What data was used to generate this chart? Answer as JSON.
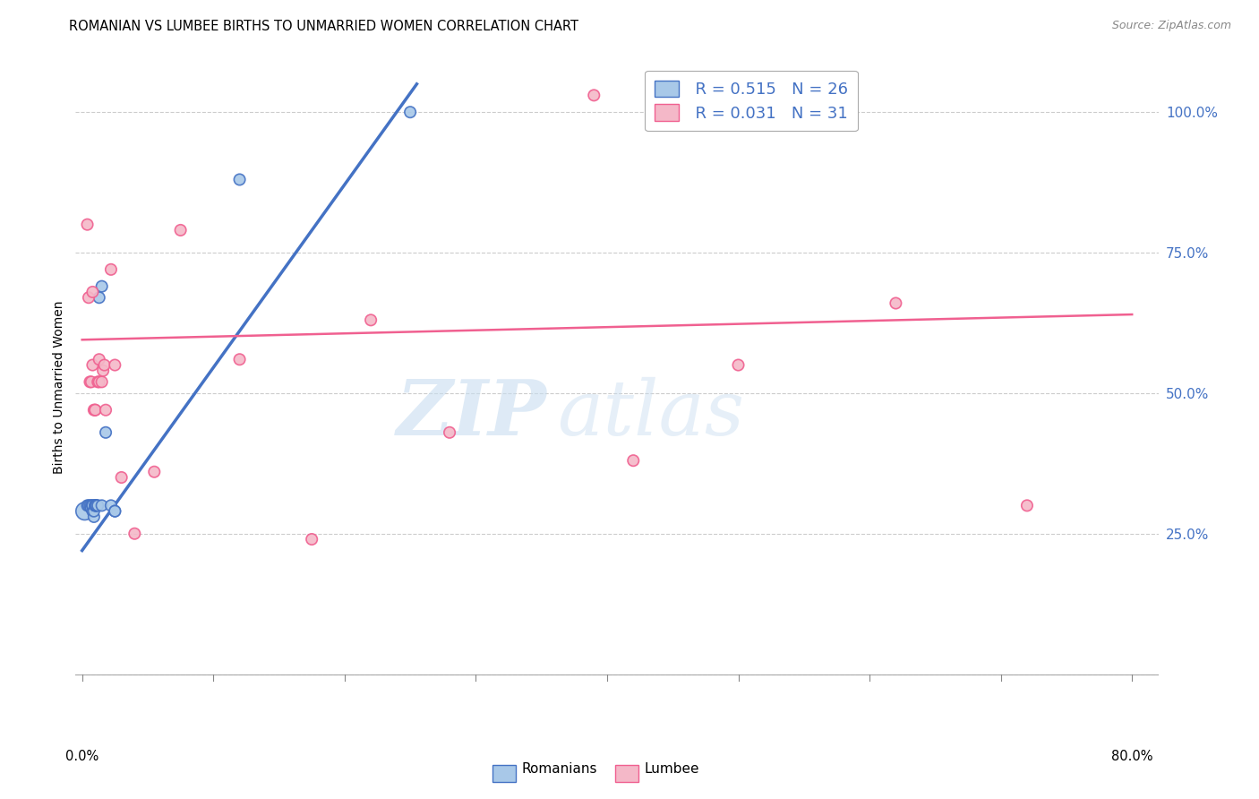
{
  "title": "ROMANIAN VS LUMBEE BIRTHS TO UNMARRIED WOMEN CORRELATION CHART",
  "source": "Source: ZipAtlas.com",
  "ylabel": "Births to Unmarried Women",
  "watermark_zip": "ZIP",
  "watermark_atlas": "atlas",
  "xlim": [
    -0.005,
    0.82
  ],
  "ylim": [
    -0.08,
    1.1
  ],
  "yticks": [
    0.0,
    0.25,
    0.5,
    0.75,
    1.0
  ],
  "ytick_labels": [
    "",
    "25.0%",
    "50.0%",
    "75.0%",
    "100.0%"
  ],
  "legend_R_romanian": "R = 0.515",
  "legend_N_romanian": "N = 26",
  "legend_R_lumbee": "R = 0.031",
  "legend_N_lumbee": "N = 31",
  "romanian_color": "#a8c8e8",
  "lumbee_color": "#f4b8c8",
  "romanian_line_color": "#4472c4",
  "lumbee_line_color": "#f06090",
  "grid_color": "#cccccc",
  "romanian_x": [
    0.002,
    0.004,
    0.005,
    0.006,
    0.007,
    0.007,
    0.008,
    0.008,
    0.008,
    0.009,
    0.009,
    0.01,
    0.01,
    0.01,
    0.011,
    0.011,
    0.012,
    0.013,
    0.015,
    0.015,
    0.018,
    0.022,
    0.025,
    0.025,
    0.12,
    0.25
  ],
  "romanian_y": [
    0.29,
    0.3,
    0.3,
    0.3,
    0.3,
    0.295,
    0.29,
    0.3,
    0.3,
    0.28,
    0.29,
    0.3,
    0.3,
    0.3,
    0.3,
    0.3,
    0.3,
    0.67,
    0.3,
    0.69,
    0.43,
    0.3,
    0.29,
    0.29,
    0.88,
    1.0
  ],
  "romanian_sizes": [
    200,
    80,
    80,
    80,
    80,
    80,
    80,
    80,
    80,
    80,
    80,
    80,
    80,
    80,
    80,
    80,
    80,
    80,
    80,
    80,
    80,
    80,
    80,
    80,
    80,
    80
  ],
  "lumbee_x": [
    0.004,
    0.005,
    0.006,
    0.007,
    0.008,
    0.008,
    0.009,
    0.01,
    0.01,
    0.012,
    0.013,
    0.013,
    0.015,
    0.016,
    0.017,
    0.018,
    0.022,
    0.025,
    0.03,
    0.04,
    0.055,
    0.075,
    0.12,
    0.175,
    0.22,
    0.28,
    0.39,
    0.42,
    0.5,
    0.62,
    0.72
  ],
  "lumbee_y": [
    0.8,
    0.67,
    0.52,
    0.52,
    0.55,
    0.68,
    0.47,
    0.47,
    0.47,
    0.52,
    0.52,
    0.56,
    0.52,
    0.54,
    0.55,
    0.47,
    0.72,
    0.55,
    0.35,
    0.25,
    0.36,
    0.79,
    0.56,
    0.24,
    0.63,
    0.43,
    1.03,
    0.38,
    0.55,
    0.66,
    0.3
  ],
  "lumbee_sizes": [
    80,
    80,
    80,
    80,
    80,
    80,
    80,
    80,
    80,
    80,
    80,
    80,
    80,
    80,
    80,
    80,
    80,
    80,
    80,
    80,
    80,
    80,
    80,
    80,
    80,
    80,
    80,
    80,
    80,
    80,
    80
  ],
  "rom_line_x0": 0.0,
  "rom_line_y0": 0.22,
  "rom_line_x1": 0.255,
  "rom_line_y1": 1.05,
  "lum_line_x0": 0.0,
  "lum_line_y0": 0.595,
  "lum_line_x1": 0.8,
  "lum_line_y1": 0.64
}
